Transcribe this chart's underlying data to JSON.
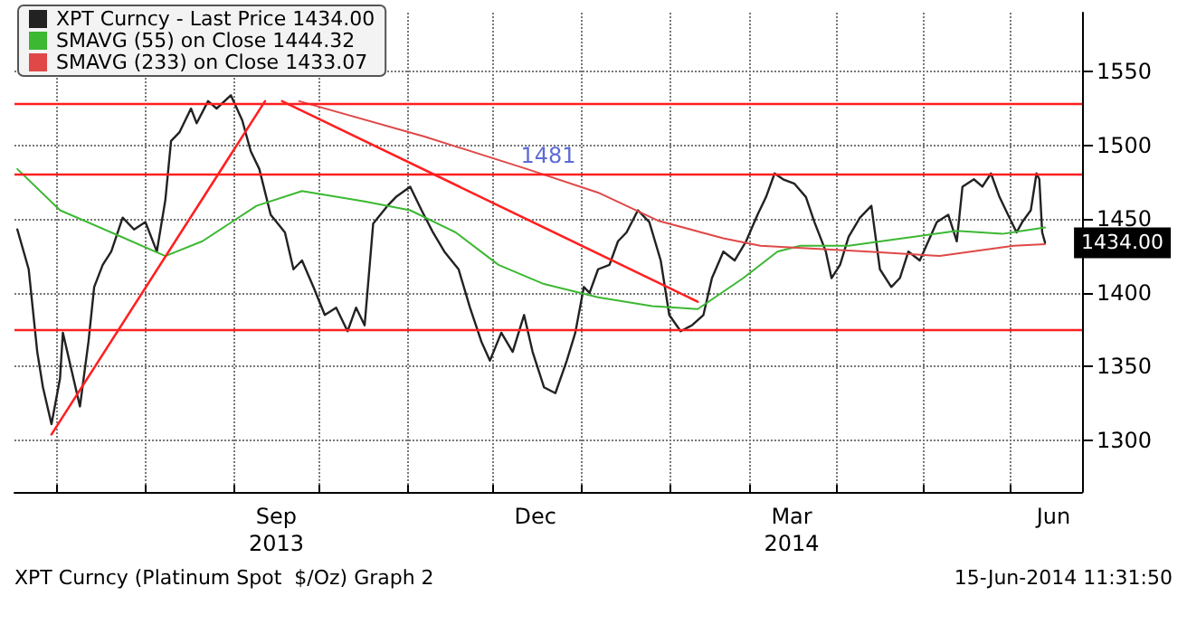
{
  "chart_data": {
    "type": "line",
    "legend": "top left",
    "grid": true,
    "line_style": "solid",
    "xlim": [
      "2013-06-16",
      "2014-06-26"
    ],
    "xticks": [
      {
        "value": "2013-07-01",
        "label": null
      },
      {
        "value": "2013-08-01",
        "label": null
      },
      {
        "value": "2013-09-01",
        "label": null
      },
      {
        "value": "2013-09-16",
        "label": "Sep\n2013"
      },
      {
        "value": "2013-10-01",
        "label": null
      },
      {
        "value": "2013-11-01",
        "label": null
      },
      {
        "value": "2013-12-01",
        "label": null
      },
      {
        "value": "2013-12-16",
        "label": "Dec"
      },
      {
        "value": "2014-01-01",
        "label": null
      },
      {
        "value": "2014-02-01",
        "label": null
      },
      {
        "value": "2014-03-01",
        "label": null
      },
      {
        "value": "2014-03-16",
        "label": "Mar\n2014"
      },
      {
        "value": "2014-04-01",
        "label": null
      },
      {
        "value": "2014-05-01",
        "label": null
      },
      {
        "value": "2014-06-01",
        "label": null
      },
      {
        "value": "2014-06-16",
        "label": "Jun"
      }
    ],
    "ylim": [
      1265,
      1590
    ],
    "yticks": [
      1300,
      1350,
      1400,
      1450,
      1500,
      1550
    ],
    "ref_lines": [
      {
        "axis": "y",
        "value": 1528,
        "label": null,
        "color": "#ff2020"
      },
      {
        "axis": "y",
        "value": 1481,
        "label": "1481",
        "color": "#ff2020"
      },
      {
        "axis": "y",
        "value": 1375,
        "label": null,
        "color": "#ff2020"
      }
    ],
    "annotations": [
      "XPT Curncy (Platinum Spot  $/Oz) Graph 2",
      "15-Jun-2014 11:31:50"
    ],
    "series": [
      {
        "name": "XPT Curncy - Last Price 1434.00",
        "color": "#222222",
        "x": [
          "2013-06-17",
          "2013-06-21",
          "2013-06-24",
          "2013-06-26",
          "2013-06-29",
          "2013-07-02",
          "2013-07-03",
          "2013-07-06",
          "2013-07-09",
          "2013-07-12",
          "2013-07-14",
          "2013-07-17",
          "2013-07-20",
          "2013-07-24",
          "2013-07-28",
          "2013-08-01",
          "2013-08-05",
          "2013-08-08",
          "2013-08-10",
          "2013-08-13",
          "2013-08-17",
          "2013-08-19",
          "2013-08-23",
          "2013-08-26",
          "2013-08-31",
          "2013-09-04",
          "2013-09-07",
          "2013-09-10",
          "2013-09-14",
          "2013-09-19",
          "2013-09-22",
          "2013-09-25",
          "2013-09-29",
          "2013-10-03",
          "2013-10-07",
          "2013-10-11",
          "2013-10-14",
          "2013-10-17",
          "2013-10-20",
          "2013-10-25",
          "2013-10-28",
          "2013-11-02",
          "2013-11-06",
          "2013-11-10",
          "2013-11-14",
          "2013-11-19",
          "2013-11-23",
          "2013-11-27",
          "2013-11-30",
          "2013-12-04",
          "2013-12-08",
          "2013-12-12",
          "2013-12-15",
          "2013-12-19",
          "2013-12-23",
          "2013-12-27",
          "2013-12-30",
          "2014-01-02",
          "2014-01-04",
          "2014-01-07",
          "2014-01-11",
          "2014-01-14",
          "2014-01-17",
          "2014-01-21",
          "2014-01-25",
          "2014-01-29",
          "2014-02-01",
          "2014-02-05",
          "2014-02-09",
          "2014-02-13",
          "2014-02-16",
          "2014-02-20",
          "2014-02-24",
          "2014-02-28",
          "2014-03-04",
          "2014-03-07",
          "2014-03-10",
          "2014-03-13",
          "2014-03-17",
          "2014-03-21",
          "2014-03-24",
          "2014-03-28",
          "2014-03-30",
          "2014-04-02",
          "2014-04-05",
          "2014-04-09",
          "2014-04-13",
          "2014-04-16",
          "2014-04-20",
          "2014-04-23",
          "2014-04-26",
          "2014-04-30",
          "2014-05-03",
          "2014-05-06",
          "2014-05-10",
          "2014-05-13",
          "2014-05-15",
          "2014-05-19",
          "2014-05-22",
          "2014-05-25",
          "2014-05-28",
          "2014-05-31",
          "2014-06-03",
          "2014-06-05",
          "2014-06-08",
          "2014-06-10",
          "2014-06-11",
          "2014-06-12",
          "2014-06-13"
        ],
        "values": [
          1443,
          1416,
          1360,
          1336,
          1311,
          1342,
          1373,
          1348,
          1323,
          1367,
          1404,
          1419,
          1428,
          1451,
          1443,
          1448,
          1428,
          1463,
          1503,
          1509,
          1525,
          1515,
          1530,
          1525,
          1534,
          1517,
          1496,
          1484,
          1453,
          1441,
          1416,
          1422,
          1404,
          1385,
          1390,
          1374,
          1390,
          1378,
          1447,
          1459,
          1465,
          1472,
          1456,
          1441,
          1428,
          1416,
          1390,
          1367,
          1354,
          1373,
          1360,
          1385,
          1360,
          1336,
          1332,
          1354,
          1373,
          1404,
          1400,
          1416,
          1419,
          1435,
          1441,
          1456,
          1448,
          1422,
          1385,
          1374,
          1378,
          1385,
          1410,
          1428,
          1422,
          1435,
          1453,
          1465,
          1481,
          1477,
          1474,
          1465,
          1448,
          1428,
          1410,
          1419,
          1438,
          1451,
          1459,
          1416,
          1404,
          1410,
          1428,
          1422,
          1435,
          1448,
          1453,
          1435,
          1472,
          1477,
          1472,
          1481,
          1465,
          1453,
          1441,
          1448,
          1456,
          1481,
          1477,
          1441,
          1434
        ],
        "value_labels": [
          null,
          null,
          null,
          null,
          null,
          null,
          null,
          null,
          null,
          null,
          null,
          null,
          null,
          null,
          null,
          null,
          null,
          null,
          null,
          null,
          null,
          null,
          null,
          null,
          null,
          null,
          null,
          null,
          null,
          null,
          null,
          null,
          null,
          null,
          null,
          null,
          null,
          null,
          null,
          null,
          null,
          null,
          null,
          null,
          null,
          null,
          null,
          null,
          null,
          null,
          null,
          null,
          null,
          null,
          null,
          null,
          null,
          null,
          null,
          null,
          null,
          null,
          null,
          null,
          null,
          null,
          null,
          null,
          null,
          null,
          null,
          null,
          null,
          null,
          null,
          null,
          null,
          null,
          null,
          null,
          null,
          null,
          null,
          null,
          null,
          null,
          null,
          null,
          null,
          null,
          null,
          null,
          null,
          null,
          null,
          null,
          null,
          null,
          null,
          null,
          null,
          null,
          null,
          null,
          null,
          null,
          null,
          null,
          "1434.00"
        ]
      },
      {
        "name": "SMAVG (55) on Close 1444.32",
        "color": "#3cb832",
        "x": [
          "2013-06-17",
          "2013-07-02",
          "2013-07-20",
          "2013-08-08",
          "2013-08-21",
          "2013-09-09",
          "2013-09-25",
          "2013-10-17",
          "2013-11-02",
          "2013-11-18",
          "2013-12-03",
          "2013-12-19",
          "2014-01-07",
          "2014-01-26",
          "2014-02-11",
          "2014-02-27",
          "2014-03-11",
          "2014-03-19",
          "2014-04-05",
          "2014-04-24",
          "2014-05-13",
          "2014-05-29",
          "2014-06-13"
        ],
        "values": [
          1484,
          1456,
          1441,
          1425,
          1435,
          1459,
          1469,
          1462,
          1456,
          1441,
          1419,
          1406,
          1397,
          1391,
          1389,
          1410,
          1428,
          1432,
          1432,
          1437,
          1442,
          1440,
          1444.32
        ]
      },
      {
        "name": "SMAVG (233) on Close 1433.07",
        "color": "#e04848",
        "x": [
          "2013-09-24",
          "2013-11-07",
          "2013-12-13",
          "2014-01-07",
          "2014-01-28",
          "2014-02-20",
          "2014-03-05",
          "2014-04-12",
          "2014-05-07",
          "2014-06-02",
          "2014-06-13"
        ],
        "values": [
          1530,
          1506,
          1484,
          1468,
          1449,
          1437,
          1432,
          1428,
          1425,
          1432,
          1433.07
        ]
      },
      {
        "color": "#ff2020",
        "x": [
          "2013-06-29",
          "2013-09-12"
        ],
        "values": [
          1304,
          1530
        ]
      },
      {
        "color": "#ff2020",
        "x": [
          "2013-09-18",
          "2014-02-11"
        ],
        "values": [
          1530,
          1394
        ]
      }
    ]
  }
}
